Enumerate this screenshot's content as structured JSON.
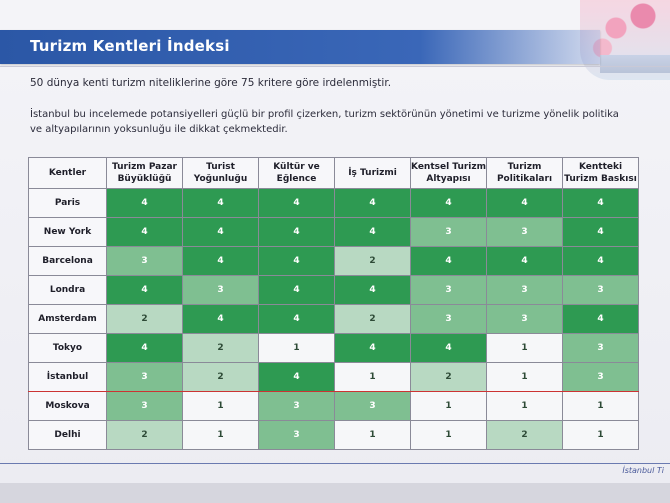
{
  "slide": {
    "title": "Turizm Kentleri İndeksi",
    "intro": "50 dünya kenti turizm niteliklerine göre 75 kritere göre irdelenmiştir.",
    "description": "İstanbul bu incelemede potansiyelleri güçlü bir profil çizerken, turizm sektörünün yönetimi ve turizme yönelik politika ve altyapılarının yoksunluğu ile dikkat çekmektedir.",
    "footer": "İstanbul Ti"
  },
  "colors": {
    "title_bar": "#2b57a6",
    "score_4": "#2e9a52",
    "score_3": "#7fbf91",
    "score_2": "#b8d9c2",
    "score_1": "#f6f7f9",
    "highlight_row_border": "#cc3333"
  },
  "table": {
    "headers": [
      "Kentler",
      "Turizm Pazar Büyüklüğü",
      "Turist Yoğunluğu",
      "Kültür ve Eğlence",
      "İş Turizmi",
      "Kentsel Turizm Altyapısı",
      "Turizm Politikaları",
      "Kentteki Turizm Baskısı"
    ],
    "highlighted_city": "İstanbul",
    "rows": [
      {
        "city": "Paris",
        "scores": [
          "4",
          "4",
          "4",
          "4",
          "4",
          "4",
          "4"
        ]
      },
      {
        "city": "New York",
        "scores": [
          "4",
          "4",
          "4",
          "4",
          "3",
          "3",
          "4"
        ]
      },
      {
        "city": "Barcelona",
        "scores": [
          "3",
          "4",
          "4",
          "2",
          "4",
          "4",
          "4"
        ]
      },
      {
        "city": "Londra",
        "scores": [
          "4",
          "3",
          "4",
          "4",
          "3",
          "3",
          "3"
        ]
      },
      {
        "city": "Amsterdam",
        "scores": [
          "2",
          "4",
          "4",
          "2",
          "3",
          "3",
          "4"
        ]
      },
      {
        "city": "Tokyo",
        "scores": [
          "4",
          "2",
          "1",
          "4",
          "4",
          "1",
          "3"
        ]
      },
      {
        "city": "İstanbul",
        "scores": [
          "3",
          "2",
          "4",
          "1",
          "2",
          "1",
          "3"
        ]
      },
      {
        "city": "Moskova",
        "scores": [
          "3",
          "1",
          "3",
          "3",
          "1",
          "1",
          "1"
        ]
      },
      {
        "city": "Delhi",
        "scores": [
          "2",
          "1",
          "3",
          "1",
          "1",
          "2",
          "1"
        ]
      }
    ]
  }
}
